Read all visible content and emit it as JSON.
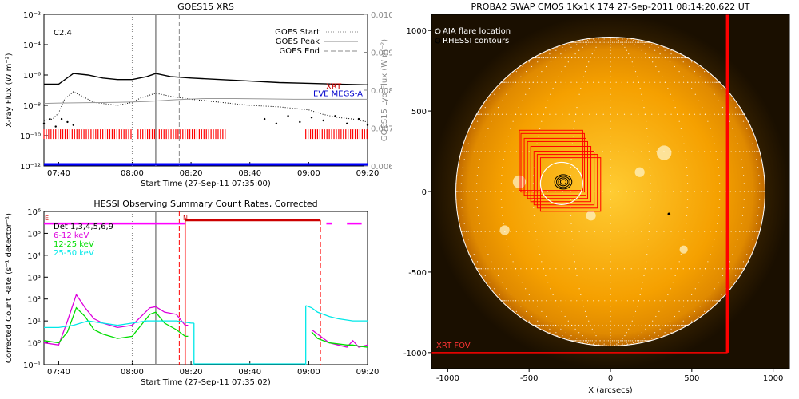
{
  "colors": {
    "xrt": "#000000",
    "eve": "#0000cc",
    "hessi_obs": "#ff0000",
    "hessi_6_12": "#dd00dd",
    "hessi_12_25": "#00dd00",
    "hessi_25_50": "#00e8e8",
    "hessi_bar": "#ff00ff",
    "fov": "#ff0000",
    "sun": "#f0a000"
  },
  "chart_data": [
    {
      "type": "line",
      "title": "GOES15 XRS",
      "flare_class": "C2.4",
      "xlabel": "Start Time (27-Sep-11 07:35:00)",
      "ylabel": "X-ray Flux (W m⁻²)",
      "y2label": "GOES15 Lyα Flux (W m⁻²)",
      "yscale": "log",
      "xlim_min": [
        -5,
        105
      ],
      "ylim_log10": [
        -12,
        -2
      ],
      "y2lim": [
        0.006,
        0.01
      ],
      "xticks": [
        {
          "v": 0,
          "l": "07:40"
        },
        {
          "v": 25,
          "l": "08:00"
        },
        {
          "v": 45,
          "l": "08:20"
        },
        {
          "v": 65,
          "l": "08:40"
        },
        {
          "v": 85,
          "l": "09:00"
        },
        {
          "v": 105,
          "l": "09:20"
        }
      ],
      "yticks": [
        {
          "v": -12,
          "l": "10⁻¹²"
        },
        {
          "v": -10,
          "l": "10⁻¹⁰"
        },
        {
          "v": -8,
          "l": "10⁻⁸"
        },
        {
          "v": -6,
          "l": "10⁻⁶"
        },
        {
          "v": -4,
          "l": "10⁻⁴"
        },
        {
          "v": -2,
          "l": "10⁻²"
        }
      ],
      "y2ticks": [
        {
          "v": 0.006,
          "l": "0.006"
        },
        {
          "v": 0.007,
          "l": "0.007"
        },
        {
          "v": 0.008,
          "l": "0.008"
        },
        {
          "v": 0.009,
          "l": "0.009"
        },
        {
          "v": 0.01,
          "l": "0.010"
        }
      ],
      "legend": [
        {
          "label": "GOES Start",
          "style": "dotted"
        },
        {
          "label": "GOES Peak",
          "style": "solid"
        },
        {
          "label": "GOES End",
          "style": "dashed"
        }
      ],
      "markers": {
        "start": 25,
        "peak": 33,
        "end": 41
      },
      "series": [
        {
          "name": "XRT",
          "style": "solid",
          "x": [
            -5,
            0,
            5,
            10,
            15,
            20,
            25,
            30,
            33,
            38,
            45,
            55,
            65,
            75,
            85,
            95,
            105
          ],
          "y": [
            -6.6,
            -6.6,
            -5.9,
            -6.0,
            -6.2,
            -6.3,
            -6.3,
            -6.1,
            -5.9,
            -6.1,
            -6.2,
            -6.3,
            -6.4,
            -6.5,
            -6.55,
            -6.6,
            -6.65
          ]
        },
        {
          "name": "",
          "style": "dotted",
          "x": [
            -5,
            -2,
            0,
            2,
            5,
            8,
            12,
            16,
            20,
            25,
            28,
            33,
            38,
            45,
            55,
            65,
            75,
            85,
            90,
            95,
            100,
            105
          ],
          "y": [
            -9.0,
            -8.9,
            -8.5,
            -7.6,
            -7.1,
            -7.4,
            -7.8,
            -7.9,
            -8.0,
            -7.8,
            -7.5,
            -7.2,
            -7.4,
            -7.6,
            -7.8,
            -8.0,
            -8.1,
            -8.3,
            -8.6,
            -8.8,
            -8.9,
            -9.1
          ]
        },
        {
          "name": "",
          "style": "black-dots",
          "x": [
            -5,
            -3,
            -1,
            1,
            3,
            5,
            70,
            74,
            78,
            82,
            86,
            90,
            94,
            98,
            102,
            105
          ],
          "y": [
            -9.2,
            -8.9,
            -9.4,
            -8.9,
            -9.1,
            -9.3,
            -8.9,
            -9.2,
            -8.7,
            -9.1,
            -8.8,
            -9.0,
            -8.7,
            -9.2,
            -8.9,
            -9.3
          ]
        },
        {
          "name": "EVE MEGS-A",
          "axis": "y2",
          "x": [
            -5,
            0,
            10,
            20,
            30,
            40,
            50,
            60,
            70,
            80,
            90,
            100,
            105
          ],
          "y": [
            0.00765,
            0.00766,
            0.00767,
            0.00768,
            0.0077,
            0.00775,
            0.00778,
            0.00778,
            0.00777,
            0.00776,
            0.00776,
            0.00776,
            0.00776
          ]
        }
      ],
      "obs_bars": [
        [
          -5,
          25
        ],
        [
          27,
          57
        ],
        [
          84,
          105
        ]
      ],
      "obs_bar_level": -9.9,
      "baseline_level": -12
    },
    {
      "type": "line",
      "title": "HESSI Observing Summary Count Rates, Corrected",
      "xlabel": "Start Time (27-Sep-11 07:35:02)",
      "ylabel": "Corrected Count Rate (s⁻¹ detector⁻¹)",
      "yscale": "log",
      "xlim_min": [
        -5,
        105
      ],
      "ylim_log10": [
        -1,
        6
      ],
      "xticks": [
        {
          "v": 0,
          "l": "07:40"
        },
        {
          "v": 25,
          "l": "08:00"
        },
        {
          "v": 45,
          "l": "08:20"
        },
        {
          "v": 65,
          "l": "08:40"
        },
        {
          "v": 85,
          "l": "09:00"
        },
        {
          "v": 105,
          "l": "09:20"
        }
      ],
      "yticks": [
        {
          "v": -1,
          "l": "10⁻¹"
        },
        {
          "v": 0,
          "l": "10⁰"
        },
        {
          "v": 1,
          "l": "10¹"
        },
        {
          "v": 2,
          "l": "10²"
        },
        {
          "v": 3,
          "l": "10³"
        },
        {
          "v": 4,
          "l": "10⁴"
        },
        {
          "v": 5,
          "l": "10⁵"
        },
        {
          "v": 6,
          "l": "10⁶"
        }
      ],
      "legend": [
        "Det 1,3,4,5,6,9",
        "6-12 keV",
        "12-25 keV",
        "25-50 keV"
      ],
      "top_labels": [
        {
          "x": -5,
          "l": "E"
        },
        {
          "x": 42,
          "l": "N"
        }
      ],
      "markers": {
        "start": 25,
        "peak": 33,
        "end": 41,
        "obs_start": 43,
        "obs_end": 89
      },
      "obs_segment": {
        "x": [
          43,
          89
        ],
        "level": 5.6
      },
      "bar_segments": [
        [
          -5,
          43
        ],
        [
          91,
          93
        ],
        [
          98,
          103
        ]
      ],
      "bar_level": 5.45,
      "series": [
        {
          "name": "6-12 keV",
          "x": [
            -5,
            0,
            3,
            6,
            9,
            12,
            15,
            20,
            25,
            28,
            31,
            33,
            36,
            40,
            43,
            44
          ],
          "y": [
            0.0,
            -0.1,
            1.0,
            2.2,
            1.6,
            1.1,
            0.9,
            0.7,
            0.8,
            1.2,
            1.6,
            1.65,
            1.4,
            1.3,
            0.8,
            0.8
          ]
        },
        {
          "name": "12-25 keV",
          "x": [
            -5,
            0,
            3,
            6,
            9,
            12,
            15,
            20,
            25,
            28,
            31,
            33,
            36,
            40,
            43,
            44
          ],
          "y": [
            0.1,
            0.0,
            0.5,
            1.6,
            1.2,
            0.6,
            0.4,
            0.2,
            0.3,
            0.8,
            1.3,
            1.4,
            0.9,
            0.6,
            0.3,
            0.3
          ]
        },
        {
          "name": "25-50 keV",
          "x": [
            -5,
            0,
            5,
            10,
            15,
            20,
            25,
            30,
            35,
            40,
            45,
            46
          ],
          "y": [
            0.7,
            0.7,
            0.8,
            1.0,
            0.9,
            0.8,
            0.9,
            1.0,
            1.0,
            1.0,
            0.9,
            0.9
          ]
        },
        {
          "name": "6-12 keV",
          "x": [
            86,
            88,
            90,
            92,
            95,
            98,
            100,
            102,
            105
          ],
          "y": [
            0.6,
            0.4,
            0.2,
            0.0,
            -0.1,
            -0.2,
            0.1,
            -0.2,
            -0.1
          ]
        },
        {
          "name": "12-25 keV",
          "x": [
            86,
            88,
            90,
            92,
            95,
            98,
            100,
            102,
            105
          ],
          "y": [
            0.5,
            0.2,
            0.1,
            0.0,
            -0.05,
            -0.1,
            -0.1,
            -0.15,
            -0.2
          ]
        },
        {
          "name": "25-50 keV",
          "x": [
            84,
            86,
            88,
            90,
            92,
            95,
            100,
            105
          ],
          "y": [
            1.7,
            1.6,
            1.4,
            1.3,
            1.2,
            1.1,
            1.0,
            1.0
          ]
        }
      ],
      "gap": [
        46,
        84
      ]
    },
    {
      "type": "image",
      "title": "PROBA2 SWAP CMOS 1Kx1K 174 27-Sep-2011 08:14:20.622 UT",
      "xlabel": "X (arcsecs)",
      "xlim": [
        -1100,
        1100
      ],
      "ylim": [
        -1100,
        1100
      ],
      "xticks": [
        -1000,
        -500,
        0,
        500,
        1000
      ],
      "yticks": [
        -1000,
        -500,
        0,
        500,
        1000
      ],
      "legend": [
        "AIA flare location",
        "RHESSI contours"
      ],
      "sun_radius": 950,
      "flare_location": [
        -300,
        50
      ],
      "aia_circle_radius": 130,
      "rhessi_contour_center": [
        -290,
        60
      ],
      "fov_label": "XRT FOV",
      "fov_box": [
        -1100,
        -1000,
        720,
        1100
      ],
      "boxes": [
        [
          -550,
          -160,
          0,
          360
        ],
        [
          -530,
          -150,
          -20,
          330
        ],
        [
          -510,
          -140,
          -40,
          310
        ],
        [
          -490,
          -120,
          -60,
          280
        ],
        [
          -470,
          -100,
          -80,
          250
        ],
        [
          -450,
          -80,
          -100,
          230
        ],
        [
          -430,
          -60,
          -120,
          210
        ],
        [
          -560,
          -170,
          10,
          380
        ]
      ],
      "black_dot": [
        360,
        -140
      ]
    }
  ]
}
